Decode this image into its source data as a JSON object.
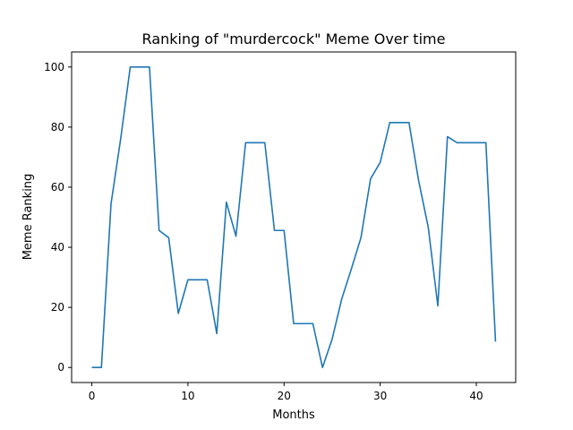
{
  "chart_data": {
    "type": "line",
    "title": "Ranking of \"murdercock\" Meme Over time",
    "xlabel": "Months",
    "ylabel": "Meme Ranking",
    "xlim": [
      -2.1,
      44.1
    ],
    "ylim": [
      -5,
      105
    ],
    "xticks": [
      0,
      10,
      20,
      30,
      40
    ],
    "yticks": [
      0,
      20,
      40,
      60,
      80,
      100
    ],
    "grid": false,
    "series": [
      {
        "color": "#1f77b4",
        "x": [
          0,
          1,
          2,
          3,
          4,
          5,
          6,
          7,
          8,
          9,
          10,
          11,
          12,
          13,
          14,
          15,
          16,
          17,
          18,
          19,
          20,
          21,
          22,
          23,
          24,
          25,
          26,
          27,
          28,
          29,
          30,
          31,
          32,
          33,
          34,
          35,
          36,
          37,
          38,
          39,
          40,
          41,
          42
        ],
        "y": [
          0,
          0,
          54.5,
          76,
          100,
          100,
          100,
          45.6,
          43.2,
          18,
          29.2,
          29.2,
          29.2,
          11.3,
          55,
          43.7,
          74.8,
          74.8,
          74.8,
          45.6,
          45.6,
          14.6,
          14.6,
          14.6,
          0,
          9.4,
          22.8,
          32.8,
          43.2,
          62.8,
          68.2,
          81.5,
          81.5,
          81.5,
          62.2,
          46.7,
          20.5,
          76.8,
          74.8,
          74.8,
          74.8,
          74.8,
          8.6
        ]
      }
    ]
  }
}
